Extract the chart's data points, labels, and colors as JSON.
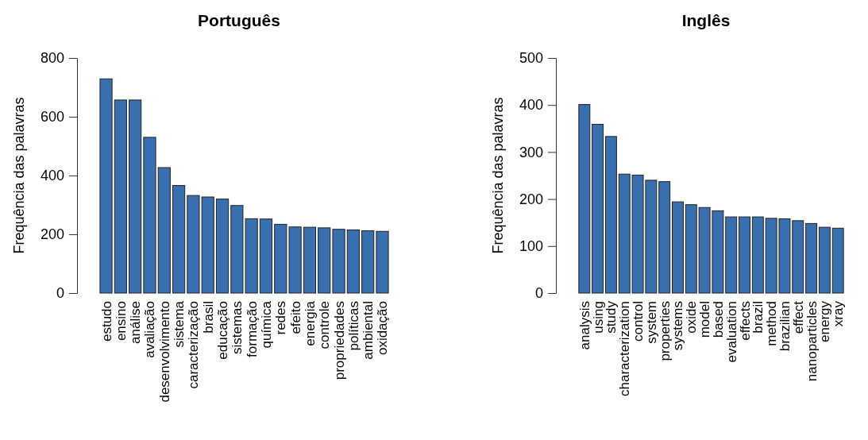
{
  "chart_data": [
    {
      "type": "bar",
      "title": "Português",
      "ylabel": "Frequência das palavras",
      "categories": [
        "estudo",
        "ensino",
        "análise",
        "avaliação",
        "desenvolvimento",
        "sistema",
        "caracterização",
        "brasil",
        "educação",
        "sistemas",
        "formação",
        "química",
        "redes",
        "efeito",
        "energia",
        "controle",
        "propriedades",
        "políticas",
        "ambiental",
        "oxidação"
      ],
      "values": [
        729,
        657,
        657,
        530,
        427,
        366,
        332,
        327,
        320,
        298,
        253,
        252,
        234,
        225,
        224,
        222,
        217,
        215,
        212,
        210
      ],
      "color": "#3a6faf",
      "ylim": [
        0,
        800
      ],
      "yticks": [
        0,
        200,
        400,
        600,
        800
      ]
    },
    {
      "type": "bar",
      "title": "Inglês",
      "ylabel": "Frequência das palavras",
      "categories": [
        "analysis",
        "using",
        "study",
        "characterization",
        "control",
        "system",
        "properties",
        "systems",
        "oxide",
        "model",
        "based",
        "evaluation",
        "effects",
        "brazil",
        "method",
        "brazilian",
        "effect",
        "nanoparticles",
        "energy",
        "xray"
      ],
      "values": [
        401,
        359,
        333,
        253,
        251,
        240,
        237,
        194,
        188,
        182,
        175,
        162,
        162,
        162,
        159,
        158,
        154,
        148,
        140,
        138
      ],
      "color": "#3a6faf",
      "ylim": [
        0,
        500
      ],
      "yticks": [
        0,
        100,
        200,
        300,
        400,
        500
      ]
    }
  ]
}
